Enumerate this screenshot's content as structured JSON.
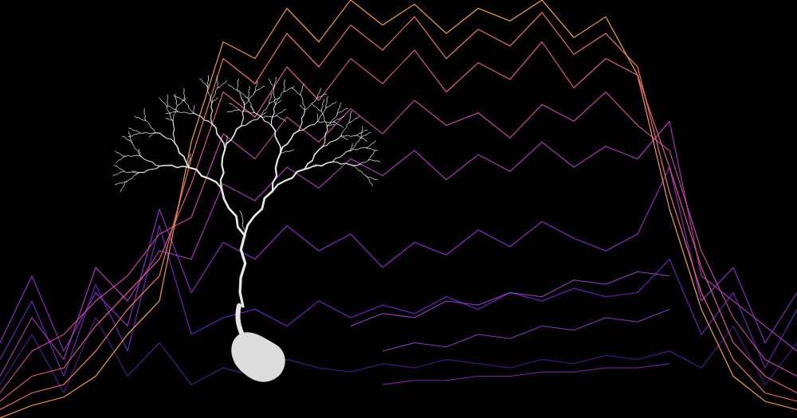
{
  "chart_data": {
    "type": "line",
    "tick_labels": false,
    "grid": false,
    "xlim": [
      0,
      100
    ],
    "ylim": [
      0,
      100
    ],
    "x": [
      0,
      4,
      8,
      12,
      16,
      20,
      24,
      28,
      32,
      36,
      40,
      44,
      48,
      52,
      56,
      60,
      64,
      68,
      72,
      76,
      80,
      84,
      88,
      92,
      96,
      100
    ],
    "series": [
      {
        "color": "#4b1a8c",
        "values": [
          8,
          20,
          6,
          24,
          10,
          18,
          8,
          12,
          10,
          14,
          12,
          11,
          13,
          12,
          14,
          13,
          12,
          14,
          13,
          15,
          14,
          16,
          12,
          22,
          8,
          18
        ]
      },
      {
        "color": "#6b22b8",
        "values": [
          14,
          28,
          10,
          32,
          16,
          46,
          20,
          24,
          26,
          22,
          28,
          24,
          27,
          25,
          29,
          26,
          30,
          28,
          31,
          29,
          30,
          38,
          20,
          30,
          12,
          26
        ]
      },
      {
        "color": "#8a2ac0",
        "values": [
          18,
          34,
          16,
          30,
          22,
          50,
          30,
          42,
          38,
          46,
          40,
          44,
          36,
          42,
          39,
          45,
          41,
          47,
          43,
          40,
          44,
          60,
          28,
          36,
          18,
          30
        ]
      },
      {
        "color": "#a636b0",
        "values": [
          10,
          24,
          14,
          36,
          28,
          40,
          38,
          56,
          52,
          60,
          55,
          62,
          58,
          64,
          57,
          63,
          59,
          66,
          60,
          65,
          62,
          71,
          34,
          28,
          22,
          16
        ]
      },
      {
        "color": "#c2459e",
        "values": [
          6,
          16,
          20,
          28,
          34,
          44,
          48,
          68,
          62,
          72,
          66,
          74,
          68,
          76,
          70,
          73,
          67,
          75,
          71,
          78,
          70,
          64,
          40,
          24,
          14,
          10
        ]
      },
      {
        "color": "#d9558a",
        "values": [
          4,
          10,
          12,
          22,
          30,
          38,
          56,
          78,
          72,
          84,
          76,
          86,
          80,
          88,
          78,
          85,
          81,
          90,
          79,
          86,
          82,
          60,
          36,
          18,
          10,
          6
        ]
      },
      {
        "color": "#ec6f6c",
        "values": [
          2,
          6,
          8,
          16,
          26,
          34,
          62,
          86,
          80,
          92,
          84,
          94,
          88,
          96,
          86,
          93,
          89,
          97,
          87,
          92,
          84,
          54,
          30,
          14,
          6,
          4
        ]
      },
      {
        "color": "#f39a46",
        "values": [
          0,
          3,
          5,
          10,
          20,
          28,
          66,
          90,
          86,
          98,
          90,
          100,
          94,
          99,
          92,
          98,
          95,
          100,
          91,
          96,
          82,
          50,
          26,
          10,
          4,
          2
        ]
      },
      {
        "color": "#8a3ab8",
        "values": [
          null,
          null,
          null,
          null,
          null,
          null,
          null,
          null,
          null,
          null,
          null,
          null,
          16,
          18,
          17,
          20,
          19,
          22,
          21,
          24,
          23,
          26,
          null,
          null,
          null,
          null
        ]
      },
      {
        "color": "#7a2aa8",
        "values": [
          null,
          null,
          null,
          null,
          null,
          null,
          null,
          null,
          null,
          null,
          null,
          null,
          8,
          9,
          9,
          10,
          10,
          11,
          11,
          12,
          12,
          13,
          null,
          null,
          null,
          null
        ]
      },
      {
        "color": "#9a40c0",
        "values": [
          null,
          null,
          null,
          null,
          null,
          null,
          null,
          null,
          null,
          null,
          null,
          22,
          25,
          24,
          28,
          27,
          30,
          29,
          33,
          32,
          35,
          34,
          null,
          null,
          null,
          null
        ]
      }
    ]
  }
}
